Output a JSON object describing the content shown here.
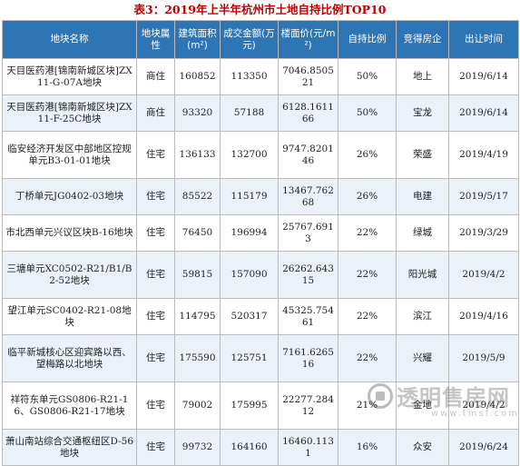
{
  "title": "表3：2019年上半年杭州市土地自持比例TOP10",
  "headers": [
    "地块名称",
    "地块属性",
    "建筑面积(m²)",
    "成交金额(万元)",
    "楼面价(元/m²)",
    "自持比例",
    "竞得房企",
    "出让时间"
  ],
  "rows": [
    [
      "天目医药港[锦南新城区块]ZX11-G-07A地块",
      "商住",
      "160852",
      "113350",
      "7046.850521",
      "50%",
      "地上",
      "2019/6/14"
    ],
    [
      "天目医药港[锦南新城区块]ZX11-F-25C地块",
      "商住",
      "93320",
      "57188",
      "6128.161166",
      "50%",
      "宝龙",
      "2019/6/14"
    ],
    [
      "临安经济开发区中部地区控规单元B3-01-01地块",
      "住宅",
      "136133",
      "132700",
      "9747.820146",
      "26%",
      "荣盛",
      "2019/4/19"
    ],
    [
      "丁桥单元JG0402-03地块",
      "住宅",
      "85522",
      "115179",
      "13467.76268",
      "26%",
      "电建",
      "2019/5/17"
    ],
    [
      "市北西单元兴议区块B-16地块",
      "住宅",
      "76450",
      "196994",
      "25767.6913",
      "22%",
      "绿城",
      "2019/3/29"
    ],
    [
      "三塘单元XC0502-R21/B1/B2-52地块",
      "住宅",
      "59815",
      "157090",
      "26262.64315",
      "22%",
      "阳光城",
      "2019/4/2"
    ],
    [
      "望江单元SC0402-R21-08地块",
      "住宅",
      "114795",
      "520317",
      "45325.75461",
      "22%",
      "滨江",
      "2019/4/16"
    ],
    [
      "临平新城核心区迎宾路以西、望梅路以北地块",
      "住宅",
      "175590",
      "125751",
      "7161.626516",
      "22%",
      "兴耀",
      "2019/5/9"
    ],
    [
      "祥符东单元GS0806-R21-16、GS0806-R21-17地块",
      "住宅",
      "79002",
      "175995",
      "22277.28412",
      "21%",
      "金地",
      "2019/4/2"
    ],
    [
      "萧山南站综合交通枢纽区D-56地块",
      "住宅",
      "99732",
      "164160",
      "16460.1131",
      "16%",
      "众安",
      "2019/6/24"
    ]
  ],
  "watermark": {
    "text": "透明售房网",
    "url": "www.tmsf.com"
  }
}
